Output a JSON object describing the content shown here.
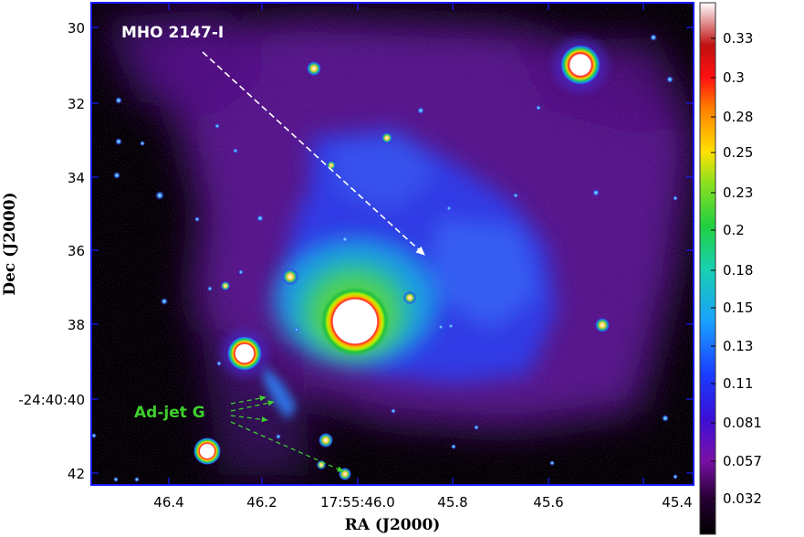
{
  "figure": {
    "x_axis_label": "RA (J2000)",
    "y_axis_label": "Dec (J2000)",
    "x_ticks": [
      "46.4",
      "46.2",
      "17:55:46.0",
      "45.8",
      "45.6",
      "45.4"
    ],
    "y_ticks": [
      "30",
      "32",
      "34",
      "36",
      "38",
      "-24:40:40",
      "42"
    ],
    "colorbar_ticks": [
      "0.33",
      "0.3",
      "0.28",
      "0.25",
      "0.23",
      "0.2",
      "0.18",
      "0.15",
      "0.13",
      "0.11",
      "0.081",
      "0.057",
      "0.032"
    ],
    "annotations": {
      "mho_label": "MHO 2147-I",
      "adjet_label": "Ad-jet G"
    },
    "colors": {
      "frame": "#1a1aff",
      "mho_text": "#ffffff",
      "adjet_text": "#3ecf2e",
      "background": "#000000"
    }
  }
}
